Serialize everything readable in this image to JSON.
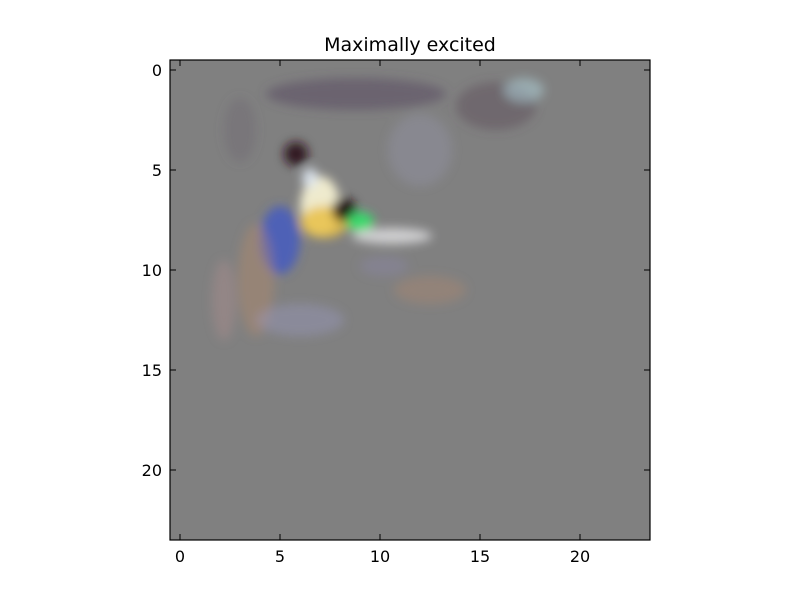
{
  "chart_data": {
    "type": "heatmap",
    "title": "Maximally excited",
    "xlabel": "",
    "ylabel": "",
    "xlim": [
      -0.5,
      23.5
    ],
    "ylim": [
      23.5,
      -0.5
    ],
    "y_inverted": true,
    "grid": false,
    "x_ticks": [
      0,
      5,
      10,
      15,
      20
    ],
    "y_ticks": [
      0,
      5,
      10,
      15,
      20
    ],
    "grid_size": [
      24,
      24
    ],
    "background_color": "#808080",
    "blobs": [
      {
        "x": 7.0,
        "y": 6.8,
        "rx": 1.0,
        "ry": 1.5,
        "color": "#f4f0d2",
        "opacity": 0.95
      },
      {
        "x": 7.2,
        "y": 7.6,
        "rx": 1.2,
        "ry": 0.8,
        "color": "#e8c045",
        "opacity": 0.85
      },
      {
        "x": 8.2,
        "y": 7.0,
        "rx": 0.6,
        "ry": 0.6,
        "color": "#200a0e",
        "opacity": 0.95
      },
      {
        "x": 5.8,
        "y": 4.2,
        "rx": 0.6,
        "ry": 0.6,
        "color": "#2a0f14",
        "opacity": 0.9
      },
      {
        "x": 9.0,
        "y": 7.6,
        "rx": 0.7,
        "ry": 0.5,
        "color": "#2ee86a",
        "opacity": 0.85
      },
      {
        "x": 10.6,
        "y": 8.3,
        "rx": 2.0,
        "ry": 0.4,
        "color": "#f0f0f2",
        "opacity": 0.7
      },
      {
        "x": 5.0,
        "y": 8.5,
        "rx": 1.0,
        "ry": 1.7,
        "color": "#3f55c8",
        "opacity": 0.75
      },
      {
        "x": 3.8,
        "y": 10.5,
        "rx": 0.9,
        "ry": 2.8,
        "color": "#b98a6a",
        "opacity": 0.4
      },
      {
        "x": 2.2,
        "y": 11.5,
        "rx": 0.6,
        "ry": 2.0,
        "color": "#b89090",
        "opacity": 0.35
      },
      {
        "x": 8.8,
        "y": 1.2,
        "rx": 4.5,
        "ry": 0.8,
        "color": "#5a4d62",
        "opacity": 0.55
      },
      {
        "x": 15.8,
        "y": 1.8,
        "rx": 2.0,
        "ry": 1.2,
        "color": "#5a4a58",
        "opacity": 0.45
      },
      {
        "x": 17.2,
        "y": 1.0,
        "rx": 1.0,
        "ry": 0.6,
        "color": "#b8e0e8",
        "opacity": 0.45
      },
      {
        "x": 12.0,
        "y": 4.0,
        "rx": 1.6,
        "ry": 1.8,
        "color": "#9a9ab4",
        "opacity": 0.3
      },
      {
        "x": 12.5,
        "y": 11.0,
        "rx": 1.8,
        "ry": 0.7,
        "color": "#b58a6a",
        "opacity": 0.35
      },
      {
        "x": 6.0,
        "y": 12.5,
        "rx": 2.2,
        "ry": 0.8,
        "color": "#a2a2d6",
        "opacity": 0.3
      },
      {
        "x": 3.0,
        "y": 3.0,
        "rx": 0.8,
        "ry": 1.6,
        "color": "#6a6070",
        "opacity": 0.35
      },
      {
        "x": 6.5,
        "y": 5.4,
        "rx": 0.4,
        "ry": 0.5,
        "color": "#dde6f0",
        "opacity": 0.9
      },
      {
        "x": 10.2,
        "y": 9.8,
        "rx": 1.2,
        "ry": 0.5,
        "color": "#8a84a8",
        "opacity": 0.4
      }
    ]
  }
}
